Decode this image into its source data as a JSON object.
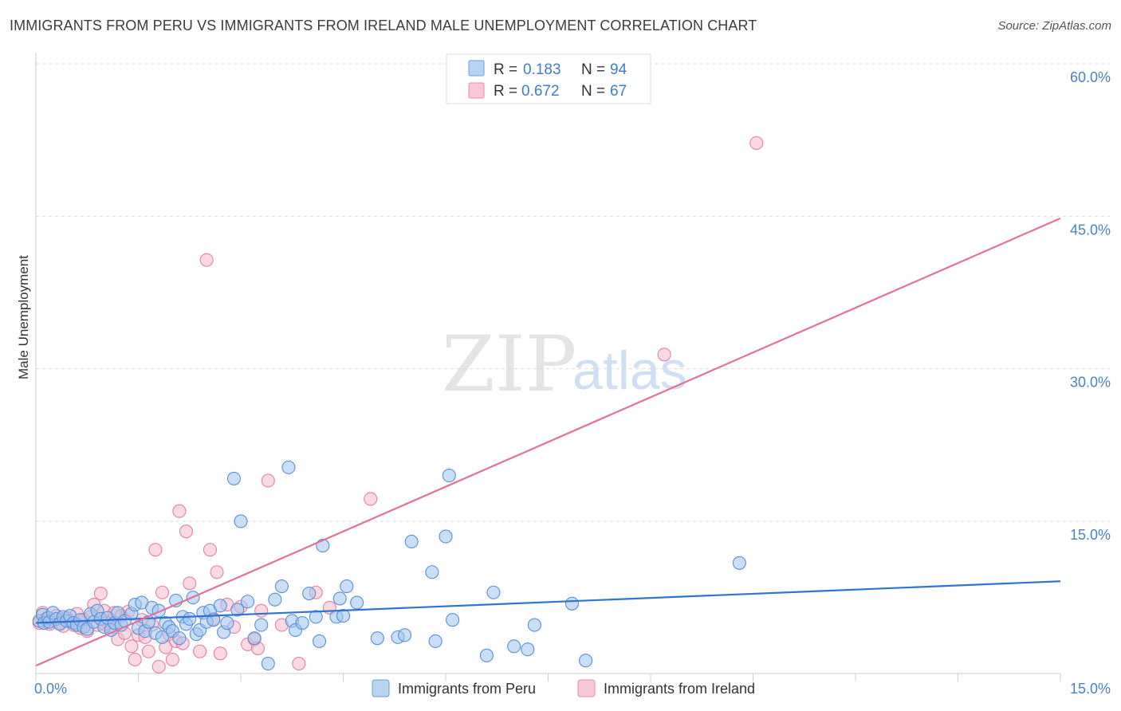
{
  "title": "IMMIGRANTS FROM PERU VS IMMIGRANTS FROM IRELAND MALE UNEMPLOYMENT CORRELATION CHART",
  "source": "Source: ZipAtlas.com",
  "watermark": {
    "zip": "ZIP",
    "atlas": "atlas"
  },
  "colors": {
    "peru_fill": "#9ec5f0",
    "peru_stroke": "#5b8fd6",
    "peru_line": "#2f74d0",
    "ireland_fill": "#f6b9cb",
    "ireland_stroke": "#e77fa2",
    "ireland_line": "#e5709a",
    "tick_label": "#4a80c8",
    "grid": "#d9d9d9"
  },
  "legend": {
    "rows": [
      {
        "r_label": "R =",
        "r_value": "0.183",
        "n_label": "N =",
        "n_value": "94"
      },
      {
        "r_label": "R =",
        "r_value": "0.672",
        "n_label": "N =",
        "n_value": "67"
      }
    ]
  },
  "bottom_legend": [
    "Immigrants from Peru",
    "Immigrants from Ireland"
  ],
  "chart_data": {
    "type": "scatter",
    "title": "IMMIGRANTS FROM PERU VS IMMIGRANTS FROM IRELAND MALE UNEMPLOYMENT CORRELATION CHART",
    "xlabel": "",
    "ylabel": "Male Unemployment",
    "xlim": [
      0,
      15
    ],
    "ylim": [
      0,
      62
    ],
    "x_tick_labels": [
      {
        "value": 0,
        "label": "0.0%"
      },
      {
        "value": 15,
        "label": "15.0%"
      }
    ],
    "y_tick_labels": [
      {
        "value": 15,
        "label": "15.0%"
      },
      {
        "value": 30,
        "label": "30.0%"
      },
      {
        "value": 45,
        "label": "45.0%"
      },
      {
        "value": 60,
        "label": "60.0%"
      }
    ],
    "series": [
      {
        "name": "Immigrants from Peru",
        "r": 0.183,
        "n": 94,
        "trend": {
          "x": [
            0,
            15
          ],
          "y": [
            5.0,
            9.1
          ]
        },
        "points": [
          [
            0.05,
            5.2
          ],
          [
            0.1,
            5.8
          ],
          [
            0.12,
            5.0
          ],
          [
            0.18,
            5.5
          ],
          [
            0.2,
            5.1
          ],
          [
            0.25,
            6.0
          ],
          [
            0.3,
            5.4
          ],
          [
            0.35,
            4.9
          ],
          [
            0.4,
            5.6
          ],
          [
            0.45,
            5.2
          ],
          [
            0.5,
            5.7
          ],
          [
            0.55,
            5.0
          ],
          [
            0.6,
            4.8
          ],
          [
            0.65,
            5.3
          ],
          [
            0.7,
            4.6
          ],
          [
            0.75,
            4.4
          ],
          [
            0.8,
            5.9
          ],
          [
            0.85,
            5.1
          ],
          [
            0.9,
            6.2
          ],
          [
            0.95,
            5.4
          ],
          [
            1.0,
            4.6
          ],
          [
            1.05,
            5.5
          ],
          [
            1.1,
            4.3
          ],
          [
            1.15,
            5.0
          ],
          [
            1.2,
            6.0
          ],
          [
            1.25,
            4.8
          ],
          [
            1.3,
            5.2
          ],
          [
            1.4,
            5.9
          ],
          [
            1.45,
            6.8
          ],
          [
            1.5,
            4.5
          ],
          [
            1.55,
            7.0
          ],
          [
            1.6,
            4.2
          ],
          [
            1.65,
            5.1
          ],
          [
            1.7,
            6.5
          ],
          [
            1.75,
            4.0
          ],
          [
            1.8,
            6.2
          ],
          [
            1.85,
            3.6
          ],
          [
            1.9,
            5.0
          ],
          [
            1.95,
            4.6
          ],
          [
            2.0,
            4.2
          ],
          [
            2.05,
            7.2
          ],
          [
            2.1,
            3.5
          ],
          [
            2.15,
            5.6
          ],
          [
            2.2,
            4.9
          ],
          [
            2.25,
            5.4
          ],
          [
            2.3,
            7.5
          ],
          [
            2.35,
            3.9
          ],
          [
            2.4,
            4.3
          ],
          [
            2.45,
            6.0
          ],
          [
            2.5,
            5.1
          ],
          [
            2.55,
            6.2
          ],
          [
            2.6,
            5.3
          ],
          [
            2.7,
            6.7
          ],
          [
            2.75,
            4.1
          ],
          [
            2.8,
            5.0
          ],
          [
            2.9,
            19.2
          ],
          [
            2.95,
            6.3
          ],
          [
            3.0,
            15.0
          ],
          [
            3.1,
            7.1
          ],
          [
            3.2,
            3.5
          ],
          [
            3.3,
            4.8
          ],
          [
            3.4,
            1.0
          ],
          [
            3.5,
            7.3
          ],
          [
            3.6,
            8.6
          ],
          [
            3.7,
            20.3
          ],
          [
            3.75,
            5.2
          ],
          [
            3.8,
            4.3
          ],
          [
            3.9,
            5.0
          ],
          [
            4.0,
            7.9
          ],
          [
            4.1,
            5.6
          ],
          [
            4.15,
            3.2
          ],
          [
            4.2,
            12.6
          ],
          [
            4.4,
            5.6
          ],
          [
            4.45,
            7.4
          ],
          [
            4.5,
            5.7
          ],
          [
            4.55,
            8.6
          ],
          [
            4.7,
            7.0
          ],
          [
            5.0,
            3.5
          ],
          [
            5.3,
            3.6
          ],
          [
            5.4,
            3.8
          ],
          [
            5.5,
            13.0
          ],
          [
            5.8,
            10.0
          ],
          [
            5.85,
            3.2
          ],
          [
            6.0,
            13.5
          ],
          [
            6.05,
            19.5
          ],
          [
            6.1,
            5.3
          ],
          [
            6.6,
            1.8
          ],
          [
            6.7,
            8.0
          ],
          [
            7.0,
            2.7
          ],
          [
            7.2,
            2.4
          ],
          [
            7.3,
            4.8
          ],
          [
            7.85,
            6.9
          ],
          [
            8.05,
            1.3
          ],
          [
            10.3,
            10.9
          ]
        ]
      },
      {
        "name": "Immigrants from Ireland",
        "r": 0.672,
        "n": 67,
        "trend": {
          "x": [
            0,
            15
          ],
          "y": [
            0.8,
            44.8
          ]
        },
        "points": [
          [
            0.05,
            5.0
          ],
          [
            0.1,
            6.0
          ],
          [
            0.15,
            5.4
          ],
          [
            0.2,
            4.9
          ],
          [
            0.25,
            5.3
          ],
          [
            0.3,
            5.7
          ],
          [
            0.35,
            5.0
          ],
          [
            0.4,
            4.7
          ],
          [
            0.45,
            5.5
          ],
          [
            0.5,
            5.2
          ],
          [
            0.55,
            4.8
          ],
          [
            0.6,
            5.9
          ],
          [
            0.65,
            4.5
          ],
          [
            0.7,
            5.3
          ],
          [
            0.75,
            4.2
          ],
          [
            0.8,
            5.6
          ],
          [
            0.85,
            6.8
          ],
          [
            0.9,
            4.8
          ],
          [
            0.95,
            7.9
          ],
          [
            1.0,
            6.2
          ],
          [
            1.05,
            5.0
          ],
          [
            1.1,
            4.6
          ],
          [
            1.15,
            6.0
          ],
          [
            1.2,
            3.4
          ],
          [
            1.25,
            5.7
          ],
          [
            1.3,
            4.0
          ],
          [
            1.35,
            6.1
          ],
          [
            1.4,
            2.7
          ],
          [
            1.45,
            1.4
          ],
          [
            1.5,
            3.8
          ],
          [
            1.55,
            5.3
          ],
          [
            1.6,
            3.6
          ],
          [
            1.65,
            2.2
          ],
          [
            1.7,
            4.8
          ],
          [
            1.75,
            12.2
          ],
          [
            1.8,
            0.7
          ],
          [
            1.85,
            8.0
          ],
          [
            1.9,
            2.6
          ],
          [
            1.95,
            3.9
          ],
          [
            2.0,
            1.4
          ],
          [
            2.05,
            3.2
          ],
          [
            2.1,
            16.0
          ],
          [
            2.15,
            3.0
          ],
          [
            2.2,
            14.0
          ],
          [
            2.25,
            8.9
          ],
          [
            2.4,
            2.2
          ],
          [
            2.5,
            40.7
          ],
          [
            2.55,
            12.2
          ],
          [
            2.6,
            5.4
          ],
          [
            2.65,
            10.0
          ],
          [
            2.7,
            2.0
          ],
          [
            2.8,
            6.8
          ],
          [
            2.9,
            4.6
          ],
          [
            3.0,
            6.6
          ],
          [
            3.1,
            2.9
          ],
          [
            3.2,
            3.4
          ],
          [
            3.25,
            2.5
          ],
          [
            3.3,
            6.2
          ],
          [
            3.4,
            19.0
          ],
          [
            3.6,
            4.8
          ],
          [
            3.85,
            1.0
          ],
          [
            4.1,
            8.0
          ],
          [
            4.3,
            6.5
          ],
          [
            4.9,
            17.2
          ],
          [
            9.2,
            31.4
          ],
          [
            10.55,
            52.2
          ],
          [
            1.0,
            4.9
          ]
        ]
      }
    ]
  }
}
